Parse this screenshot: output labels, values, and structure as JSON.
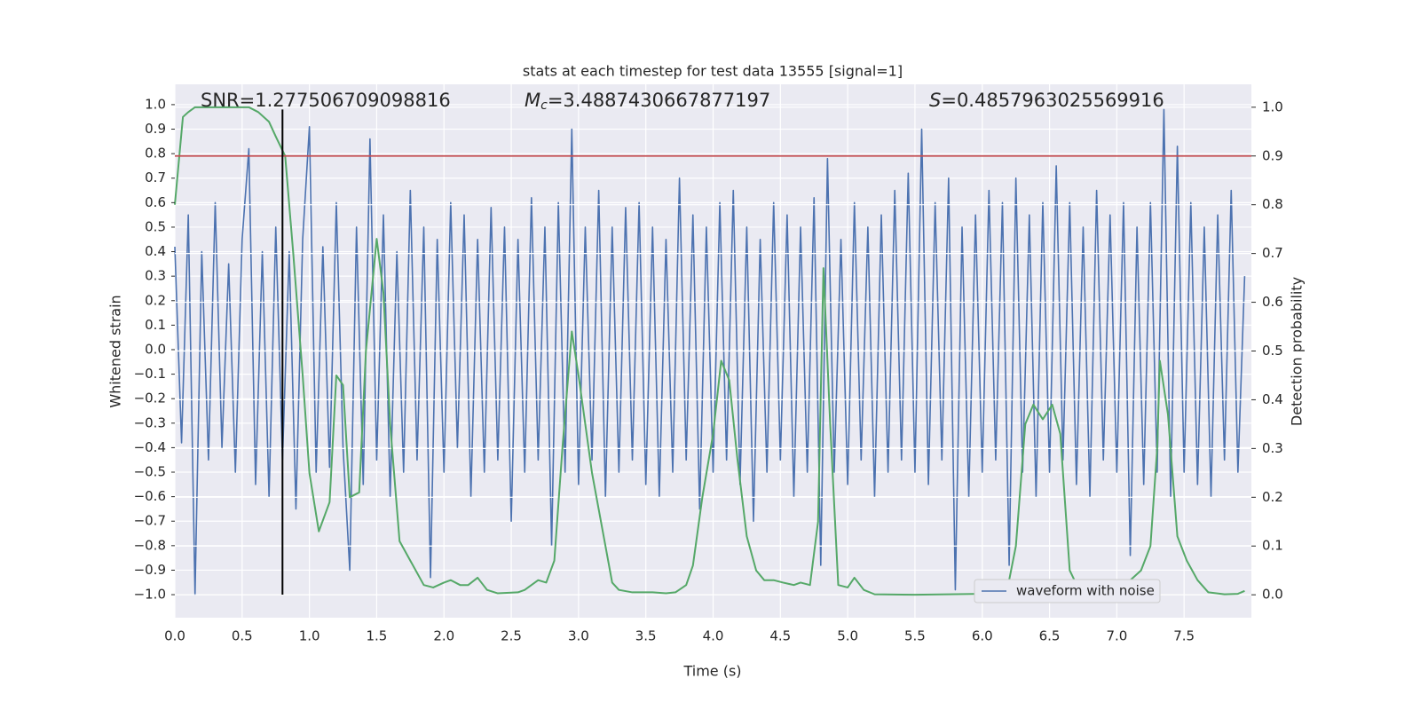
{
  "chart_data": {
    "type": "line",
    "title": "stats at each timestep for test data 13555 [signal=1]",
    "xlabel": "Time (s)",
    "ylabel": "Whitened strain",
    "y2label": "Detection probability",
    "xlim": [
      0,
      8
    ],
    "ylim": [
      -1.094,
      1.083
    ],
    "y2lim": [
      -0.047,
      1.047
    ],
    "xticks": [
      {
        "value": 0,
        "label": "0.0"
      },
      0.5,
      {
        "value": 1,
        "label": "1.0"
      },
      1.5,
      {
        "value": 2,
        "label": "2.0"
      },
      2.5,
      {
        "value": 3,
        "label": "3.0"
      },
      3.5,
      {
        "value": 4,
        "label": "4.0"
      },
      4.5,
      {
        "value": 5,
        "label": "5.0"
      },
      5.5,
      {
        "value": 6,
        "label": "6.0"
      },
      6.5,
      {
        "value": 7,
        "label": "7.0"
      },
      7.5
    ],
    "yticks": [
      {
        "value": 1,
        "label": "1.0"
      },
      0.9,
      0.8,
      0.7,
      0.6,
      0.5,
      0.4,
      0.3,
      0.2,
      0.1,
      {
        "value": 0,
        "label": "0.0"
      },
      {
        "value": -0.1,
        "label": "−0.1"
      },
      {
        "value": -0.2,
        "label": "−0.2"
      },
      {
        "value": -0.3,
        "label": "−0.3"
      },
      {
        "value": -0.4,
        "label": "−0.4"
      },
      {
        "value": -0.5,
        "label": "−0.5"
      },
      {
        "value": -0.6,
        "label": "−0.6"
      },
      {
        "value": -0.7,
        "label": "−0.7"
      },
      {
        "value": -0.8,
        "label": "−0.8"
      },
      {
        "value": -0.9,
        "label": "−0.9"
      },
      {
        "value": -1,
        "label": "−1.0"
      }
    ],
    "y2ticks": [
      {
        "value": 0,
        "label": "0.0"
      },
      0.1,
      0.2,
      0.3,
      0.4,
      0.5,
      0.6,
      0.7,
      0.8,
      0.9,
      {
        "value": 1,
        "label": "1.0"
      }
    ],
    "grid": true,
    "legend": "lower right",
    "series": [
      {
        "name": "waveform with noise",
        "color": "#4c72b0",
        "x": [
          0,
          0.05,
          0.1,
          0.15,
          0.2,
          0.25,
          0.3,
          0.35,
          0.4,
          0.45,
          0.5,
          0.55,
          0.6,
          0.65,
          0.7,
          0.75,
          0.8,
          0.85,
          0.9,
          0.95,
          1,
          1.05,
          1.1,
          1.15,
          1.2,
          1.25,
          1.3,
          1.35,
          1.4,
          1.45,
          1.5,
          1.55,
          1.6,
          1.65,
          1.7,
          1.75,
          1.8,
          1.85,
          1.9,
          1.95,
          2,
          2.05,
          2.1,
          2.15,
          2.2,
          2.25,
          2.3,
          2.35,
          2.4,
          2.45,
          2.5,
          2.55,
          2.6,
          2.65,
          2.7,
          2.75,
          2.8,
          2.85,
          2.9,
          2.95,
          3,
          3.05,
          3.1,
          3.15,
          3.2,
          3.25,
          3.3,
          3.35,
          3.4,
          3.45,
          3.5,
          3.55,
          3.6,
          3.65,
          3.7,
          3.75,
          3.8,
          3.85,
          3.9,
          3.95,
          4,
          4.05,
          4.1,
          4.15,
          4.2,
          4.25,
          4.3,
          4.35,
          4.4,
          4.45,
          4.5,
          4.55,
          4.6,
          4.65,
          4.7,
          4.75,
          4.8,
          4.85,
          4.9,
          4.95,
          5,
          5.05,
          5.1,
          5.15,
          5.2,
          5.25,
          5.3,
          5.35,
          5.4,
          5.45,
          5.5,
          5.55,
          5.6,
          5.65,
          5.7,
          5.75,
          5.8,
          5.85,
          5.9,
          5.95,
          6,
          6.05,
          6.1,
          6.15,
          6.2,
          6.25,
          6.3,
          6.35,
          6.4,
          6.45,
          6.5,
          6.55,
          6.6,
          6.65,
          6.7,
          6.75,
          6.8,
          6.85,
          6.9,
          6.95,
          7,
          7.05,
          7.1,
          7.15,
          7.2,
          7.25,
          7.3,
          7.35,
          7.4,
          7.45,
          7.5,
          7.55,
          7.6,
          7.65,
          7.7,
          7.75,
          7.8,
          7.85,
          7.9,
          7.95
        ],
        "values": [
          0.42,
          -0.38,
          0.55,
          -1.0,
          0.4,
          -0.45,
          0.6,
          -0.4,
          0.35,
          -0.5,
          0.45,
          0.82,
          -0.55,
          0.4,
          -0.6,
          0.5,
          -0.45,
          0.4,
          -0.65,
          0.45,
          0.91,
          -0.5,
          0.42,
          -0.48,
          0.6,
          -0.4,
          -0.9,
          0.5,
          -0.55,
          0.86,
          -0.45,
          0.55,
          -0.6,
          0.4,
          -0.5,
          0.65,
          -0.45,
          0.5,
          -0.93,
          0.45,
          -0.5,
          0.6,
          -0.4,
          0.55,
          -0.6,
          0.45,
          -0.5,
          0.58,
          -0.45,
          0.5,
          -0.7,
          0.45,
          -0.5,
          0.62,
          -0.45,
          0.5,
          -0.8,
          0.6,
          -0.5,
          0.9,
          -0.55,
          0.5,
          -0.45,
          0.65,
          -0.6,
          0.5,
          -0.5,
          0.58,
          -0.45,
          0.6,
          -0.55,
          0.5,
          -0.6,
          0.45,
          -0.5,
          0.7,
          -0.45,
          0.55,
          -0.65,
          0.5,
          -0.5,
          0.6,
          -0.45,
          0.65,
          -0.55,
          0.5,
          -0.7,
          0.45,
          -0.5,
          0.6,
          -0.45,
          0.55,
          -0.6,
          0.5,
          -0.5,
          0.62,
          -0.88,
          0.78,
          -0.5,
          0.45,
          -0.55,
          0.6,
          -0.45,
          0.5,
          -0.6,
          0.55,
          -0.5,
          0.65,
          -0.45,
          0.72,
          -0.5,
          0.9,
          -0.55,
          0.6,
          -0.45,
          0.7,
          -0.98,
          0.5,
          -0.6,
          0.55,
          -0.5,
          0.65,
          -0.45,
          0.6,
          -0.88,
          0.7,
          -0.5,
          0.55,
          -0.6,
          0.6,
          -0.5,
          0.75,
          -0.45,
          0.6,
          -0.55,
          0.5,
          -0.6,
          0.65,
          -0.45,
          0.55,
          -0.5,
          0.6,
          -0.84,
          0.5,
          -0.55,
          0.6,
          -0.5,
          0.98,
          -0.6,
          0.83,
          -0.5,
          0.6,
          -0.55,
          0.5,
          -0.6,
          0.55,
          -0.45,
          0.65,
          -0.5,
          0.3
        ]
      },
      {
        "color": "#55a868",
        "axis": "y2",
        "x": [
          0,
          0.06,
          0.1,
          0.15,
          0.55,
          0.62,
          0.7,
          0.75,
          0.82,
          0.88,
          0.95,
          1.0,
          1.07,
          1.15,
          1.2,
          1.25,
          1.3,
          1.37,
          1.42,
          1.5,
          1.55,
          1.6,
          1.67,
          1.75,
          1.85,
          1.92,
          2.0,
          2.05,
          2.12,
          2.18,
          2.25,
          2.32,
          2.4,
          2.55,
          2.6,
          2.7,
          2.76,
          2.82,
          2.88,
          2.95,
          3.0,
          3.05,
          3.1,
          3.2,
          3.25,
          3.3,
          3.4,
          3.55,
          3.65,
          3.72,
          3.8,
          3.85,
          3.92,
          4.0,
          4.06,
          4.12,
          4.18,
          4.25,
          4.32,
          4.38,
          4.45,
          4.52,
          4.6,
          4.65,
          4.72,
          4.78,
          4.82,
          4.87,
          4.93,
          5.0,
          5.05,
          5.12,
          5.2,
          5.5,
          6.0,
          6.1,
          6.15,
          6.2,
          6.25,
          6.32,
          6.38,
          6.45,
          6.52,
          6.58,
          6.65,
          6.72,
          6.8,
          6.95,
          7.02,
          7.1,
          7.18,
          7.25,
          7.3,
          7.32,
          7.38,
          7.45,
          7.52,
          7.6,
          7.68,
          7.8,
          7.9,
          7.95
        ],
        "values": [
          0.8,
          0.98,
          0.99,
          1.0,
          1.0,
          0.99,
          0.97,
          0.94,
          0.9,
          0.7,
          0.45,
          0.25,
          0.13,
          0.19,
          0.45,
          0.43,
          0.2,
          0.21,
          0.5,
          0.73,
          0.62,
          0.35,
          0.11,
          0.07,
          0.02,
          0.015,
          0.025,
          0.03,
          0.02,
          0.02,
          0.035,
          0.01,
          0.003,
          0.005,
          0.01,
          0.03,
          0.025,
          0.07,
          0.3,
          0.54,
          0.45,
          0.35,
          0.25,
          0.1,
          0.025,
          0.01,
          0.005,
          0.005,
          0.003,
          0.005,
          0.02,
          0.06,
          0.2,
          0.33,
          0.48,
          0.44,
          0.28,
          0.12,
          0.05,
          0.03,
          0.03,
          0.025,
          0.02,
          0.025,
          0.02,
          0.15,
          0.67,
          0.35,
          0.02,
          0.015,
          0.035,
          0.01,
          0.001,
          0.0,
          0.002,
          0.005,
          0.01,
          0.03,
          0.1,
          0.35,
          0.39,
          0.36,
          0.39,
          0.33,
          0.05,
          0.01,
          0.005,
          0.001,
          0.005,
          0.03,
          0.05,
          0.1,
          0.3,
          0.48,
          0.37,
          0.12,
          0.07,
          0.03,
          0.005,
          0.001,
          0.002,
          0.008
        ]
      }
    ],
    "hlines": [
      {
        "value": 0.9,
        "axis": "y2",
        "color": "#c44e52"
      }
    ],
    "vlines": [
      {
        "x": 0.8,
        "ymin": -1.0,
        "ymax": 0.98,
        "color": "#000000"
      }
    ],
    "annotations": [
      {
        "parts": [
          "SNR=1.277506709098816"
        ]
      },
      {
        "parts": [
          "M",
          "c",
          "=3.4887430667877197"
        ]
      },
      {
        "parts": [
          "S",
          "=0.4857963025569916"
        ]
      }
    ]
  }
}
